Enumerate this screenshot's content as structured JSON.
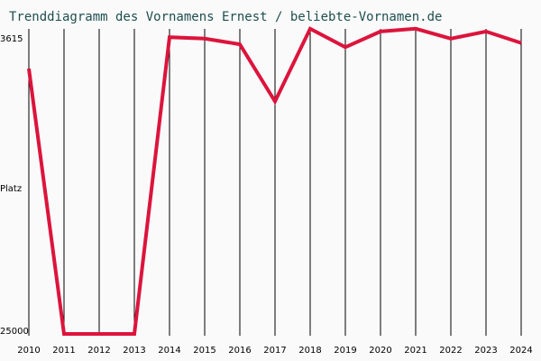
{
  "chart_data": {
    "type": "line",
    "title": "Trenddiagramm des Vornamens Ernest / beliebte-Vornamen.de",
    "ylabel": "Platz",
    "y_axis_inverted": true,
    "ylim": [
      3615,
      25000
    ],
    "yticks": [
      "3615",
      "25000"
    ],
    "grid": "vertical",
    "line_color": "#dc143c",
    "series": [
      {
        "x": [
          "2010",
          "2011",
          "2012",
          "2013",
          "2014",
          "2015",
          "2016",
          "2017",
          "2018",
          "2019",
          "2020",
          "2021",
          "2022",
          "2023",
          "2024"
        ],
        "values": [
          6400,
          25000,
          25000,
          25000,
          4200,
          4300,
          4700,
          8700,
          3600,
          4900,
          3800,
          3600,
          4300,
          3800,
          4600
        ]
      }
    ]
  }
}
